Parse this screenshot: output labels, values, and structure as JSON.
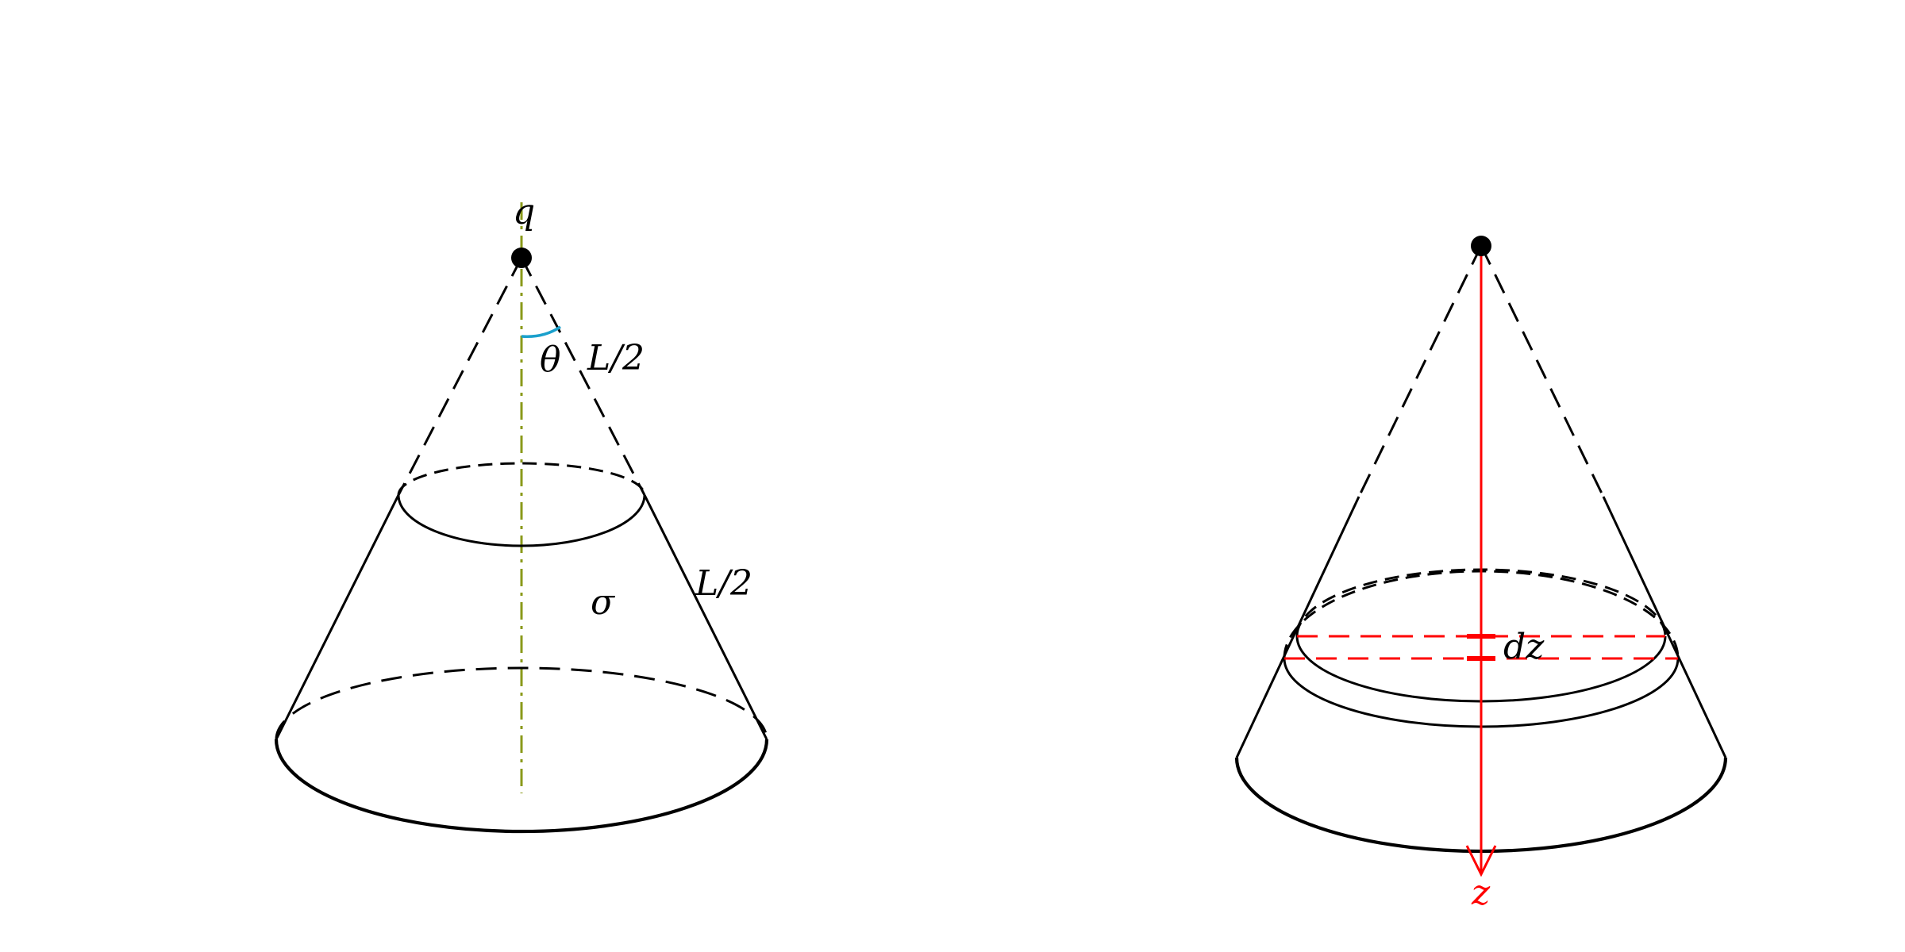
{
  "left_cone": {
    "apex_label": "q",
    "angle_label": "θ",
    "upper_length_label": "L/2",
    "lower_length_label": "L/2",
    "surface_label": "σ"
  },
  "right_cone": {
    "element_label": "dz",
    "axis_label": "z"
  },
  "colors": {
    "outline": "#000000",
    "axis": "#8a9a1a",
    "angle_arc": "#1aa0cc",
    "z_axis": "#ff0000"
  }
}
